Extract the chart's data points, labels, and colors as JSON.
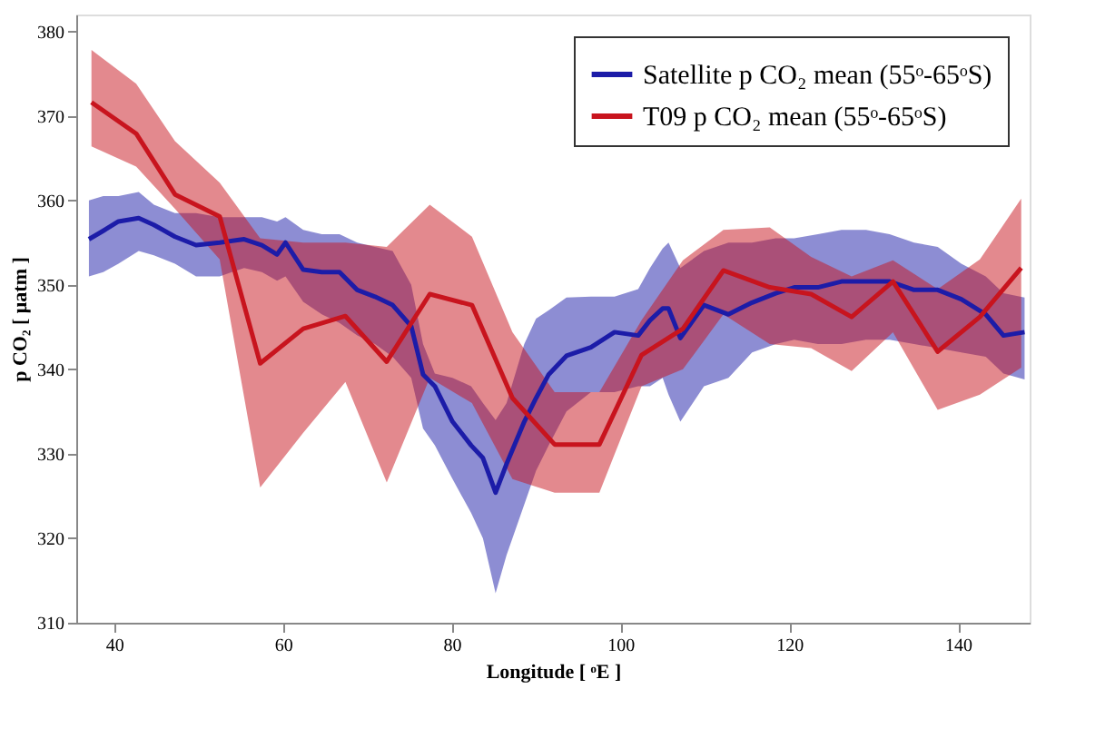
{
  "chart_data": {
    "type": "line",
    "xlabel": "Longitude [ ᵒE ]",
    "ylabel": "p CO₂ [ μatm ]",
    "xlim": [
      35.5,
      148.5
    ],
    "xticks": [
      40,
      60,
      80,
      100,
      120,
      140
    ],
    "ylim": [
      310,
      382
    ],
    "yticks": [
      310,
      320,
      330,
      340,
      350,
      360,
      370,
      380
    ],
    "grid": false,
    "legend": "top right",
    "line_style": "solid",
    "marker": "none",
    "series": [
      {
        "name": "Satellite p CO₂ mean (55ᵒ-65ᵒS)",
        "color": "#1c1ca8",
        "x": [
          37.0,
          38.7,
          40.5,
          42.9,
          44.7,
          47.2,
          49.7,
          52.5,
          55.4,
          57.5,
          59.3,
          60.3,
          62.4,
          64.6,
          66.7,
          68.8,
          70.9,
          73.0,
          75.2,
          76.6,
          78.0,
          80.1,
          82.3,
          83.7,
          85.2,
          86.5,
          88.6,
          90.0,
          91.5,
          93.6,
          96.5,
          99.3,
          102.1,
          103.5,
          105.0,
          105.7,
          107.1,
          109.9,
          112.8,
          115.6,
          118.4,
          120.6,
          123.4,
          126.2,
          129.1,
          131.9,
          134.8,
          137.6,
          140.4,
          143.3,
          145.4,
          147.9
        ],
        "values": [
          355.4,
          356.4,
          357.5,
          357.9,
          357.1,
          355.7,
          354.7,
          355.0,
          355.4,
          354.7,
          353.6,
          355.0,
          351.8,
          351.5,
          351.5,
          349.4,
          348.6,
          347.6,
          345.1,
          339.4,
          338.0,
          333.8,
          331.0,
          329.5,
          325.4,
          328.8,
          333.8,
          336.6,
          339.4,
          341.6,
          342.6,
          344.4,
          344.0,
          345.8,
          347.2,
          347.2,
          343.7,
          347.6,
          346.5,
          347.9,
          349.0,
          349.7,
          349.7,
          350.4,
          350.4,
          350.4,
          349.4,
          349.4,
          348.3,
          346.5,
          344.0,
          344.4
        ],
        "upper": [
          360.0,
          360.5,
          360.5,
          361.0,
          359.5,
          358.5,
          358.5,
          358.0,
          358.0,
          358.0,
          357.5,
          358.0,
          356.5,
          356.0,
          356.0,
          355.0,
          354.5,
          354.0,
          350.0,
          343.0,
          339.5,
          339.0,
          338.0,
          336.0,
          334.0,
          336.0,
          343.0,
          346.0,
          347.0,
          348.5,
          348.6,
          348.6,
          349.5,
          352.0,
          354.3,
          355.0,
          352.0,
          354.0,
          355.0,
          355.0,
          355.5,
          355.5,
          356.0,
          356.5,
          356.5,
          356.0,
          355.0,
          354.5,
          352.5,
          351.0,
          349.0,
          348.5
        ],
        "lower": [
          351.0,
          351.5,
          352.5,
          354.0,
          353.5,
          352.5,
          351.0,
          351.0,
          352.0,
          351.5,
          350.5,
          351.0,
          348.0,
          346.5,
          345.5,
          344.0,
          343.0,
          341.5,
          339.0,
          333.0,
          331.0,
          327.0,
          323.0,
          320.0,
          313.5,
          318.0,
          324.0,
          328.0,
          331.0,
          335.0,
          337.3,
          337.3,
          338.0,
          338.0,
          339.0,
          337.0,
          333.8,
          338.0,
          339.0,
          342.0,
          343.0,
          343.5,
          343.0,
          343.0,
          343.5,
          343.5,
          343.0,
          342.5,
          342.0,
          341.5,
          339.5,
          338.8
        ]
      },
      {
        "name": "T09 p CO₂ mean (55ᵒ-65ᵒS)",
        "color": "#c8141e",
        "x": [
          37.3,
          42.6,
          47.2,
          52.5,
          57.3,
          62.4,
          67.4,
          72.3,
          77.4,
          82.4,
          87.2,
          92.2,
          97.5,
          102.5,
          107.4,
          112.2,
          117.7,
          122.6,
          127.4,
          132.3,
          137.6,
          142.6,
          147.5
        ],
        "values": [
          371.6,
          367.9,
          360.7,
          358.1,
          340.7,
          344.8,
          346.3,
          340.9,
          348.9,
          347.6,
          336.6,
          331.1,
          331.1,
          341.7,
          344.8,
          351.7,
          349.7,
          348.9,
          346.2,
          350.4,
          342.1,
          346.2,
          352.0
        ],
        "upper": [
          377.8,
          373.8,
          367.0,
          362.1,
          355.5,
          355.0,
          355.0,
          354.5,
          359.5,
          355.7,
          344.4,
          337.3,
          337.3,
          345.8,
          352.9,
          356.5,
          356.8,
          353.3,
          351.0,
          352.9,
          349.5,
          353.0,
          360.2
        ],
        "lower": [
          366.4,
          364.0,
          359.0,
          353.0,
          326.0,
          332.5,
          338.5,
          326.6,
          339.0,
          336.0,
          327.0,
          325.4,
          325.4,
          338.0,
          340.0,
          346.5,
          343.0,
          342.5,
          339.8,
          344.4,
          335.2,
          337.0,
          340.2
        ]
      }
    ]
  }
}
